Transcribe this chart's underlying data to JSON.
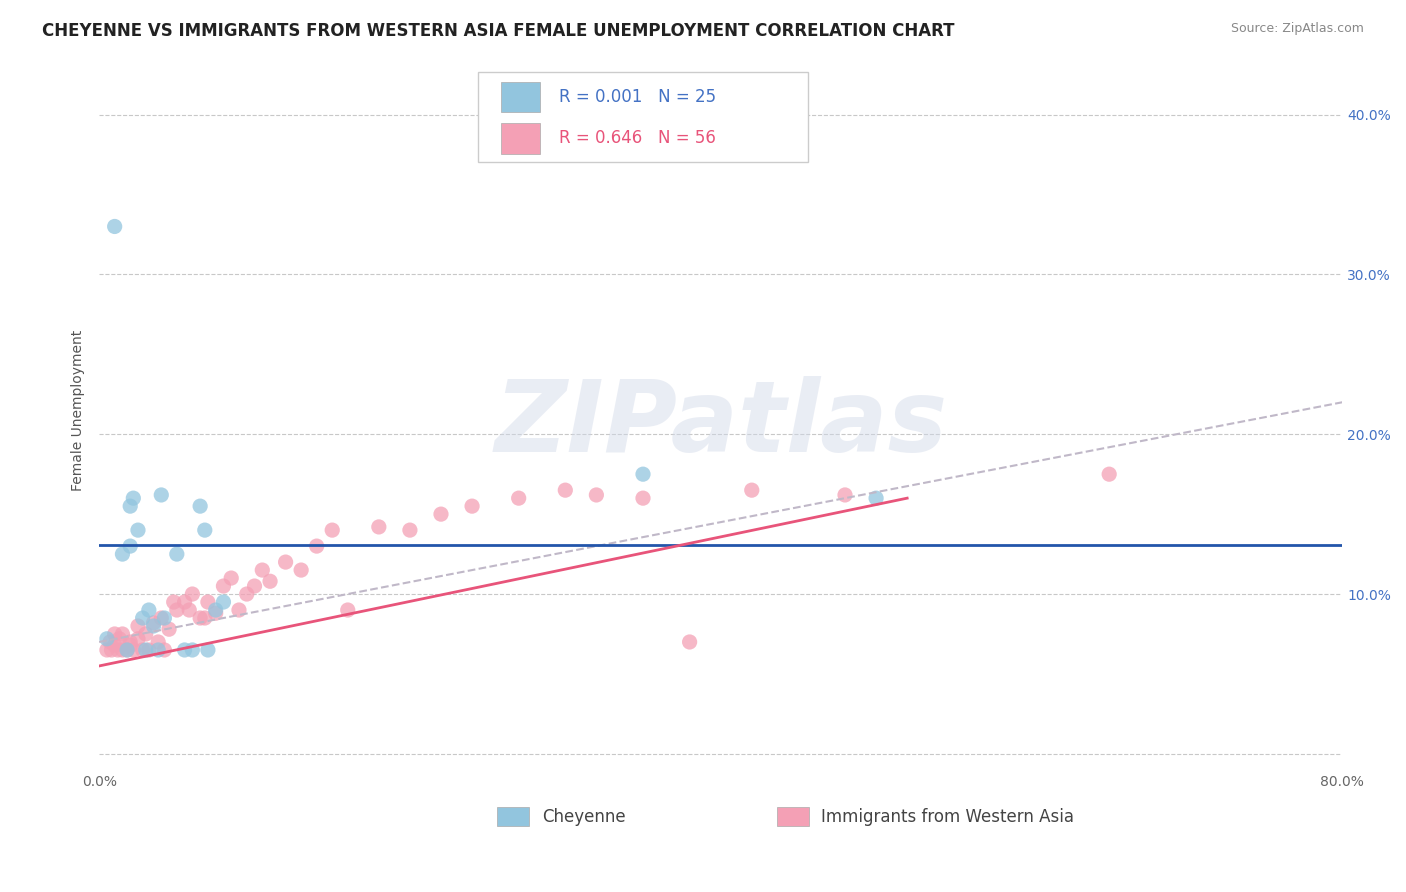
{
  "title": "CHEYENNE VS IMMIGRANTS FROM WESTERN ASIA FEMALE UNEMPLOYMENT CORRELATION CHART",
  "source": "Source: ZipAtlas.com",
  "ylabel": "Female Unemployment",
  "legend_label1": "Cheyenne",
  "legend_label2": "Immigrants from Western Asia",
  "r1": "0.001",
  "n1": "25",
  "r2": "0.646",
  "n2": "56",
  "color1": "#92c5de",
  "color2": "#f4a0b5",
  "trendline1_color": "#2255aa",
  "trendline2_color": "#e8547a",
  "trendline2_dash_color": "#c8aabb",
  "xlim": [
    0.0,
    0.8
  ],
  "ylim": [
    -0.01,
    0.44
  ],
  "yticks": [
    0.0,
    0.1,
    0.2,
    0.3,
    0.4
  ],
  "background_color": "#ffffff",
  "grid_color": "#c8c8c8",
  "cheyenne_x": [
    0.005,
    0.01,
    0.015,
    0.018,
    0.02,
    0.02,
    0.022,
    0.025,
    0.028,
    0.03,
    0.032,
    0.035,
    0.038,
    0.04,
    0.042,
    0.05,
    0.055,
    0.06,
    0.065,
    0.068,
    0.07,
    0.075,
    0.08,
    0.35,
    0.5
  ],
  "cheyenne_y": [
    0.072,
    0.33,
    0.125,
    0.065,
    0.13,
    0.155,
    0.16,
    0.14,
    0.085,
    0.065,
    0.09,
    0.08,
    0.065,
    0.162,
    0.085,
    0.125,
    0.065,
    0.065,
    0.155,
    0.14,
    0.065,
    0.09,
    0.095,
    0.175,
    0.16
  ],
  "western_asia_x": [
    0.005,
    0.007,
    0.008,
    0.01,
    0.01,
    0.012,
    0.013,
    0.015,
    0.015,
    0.018,
    0.02,
    0.02,
    0.022,
    0.025,
    0.025,
    0.028,
    0.03,
    0.032,
    0.035,
    0.038,
    0.04,
    0.042,
    0.045,
    0.048,
    0.05,
    0.055,
    0.058,
    0.06,
    0.065,
    0.068,
    0.07,
    0.075,
    0.08,
    0.085,
    0.09,
    0.095,
    0.1,
    0.105,
    0.11,
    0.12,
    0.13,
    0.14,
    0.15,
    0.16,
    0.18,
    0.2,
    0.22,
    0.24,
    0.27,
    0.3,
    0.32,
    0.35,
    0.38,
    0.42,
    0.48,
    0.65
  ],
  "western_asia_y": [
    0.065,
    0.07,
    0.065,
    0.068,
    0.075,
    0.065,
    0.072,
    0.065,
    0.075,
    0.065,
    0.068,
    0.07,
    0.065,
    0.072,
    0.08,
    0.065,
    0.075,
    0.065,
    0.082,
    0.07,
    0.085,
    0.065,
    0.078,
    0.095,
    0.09,
    0.095,
    0.09,
    0.1,
    0.085,
    0.085,
    0.095,
    0.088,
    0.105,
    0.11,
    0.09,
    0.1,
    0.105,
    0.115,
    0.108,
    0.12,
    0.115,
    0.13,
    0.14,
    0.09,
    0.142,
    0.14,
    0.15,
    0.155,
    0.16,
    0.165,
    0.162,
    0.16,
    0.07,
    0.165,
    0.162,
    0.175
  ],
  "watermark_text": "ZIPatlas",
  "title_fontsize": 12,
  "label_fontsize": 10,
  "tick_fontsize": 10,
  "legend_fontsize": 12,
  "source_fontsize": 9,
  "cheyenne_trend_y_flat": 0.131,
  "wa_trend_start_y": 0.055,
  "wa_trend_end_y": 0.16,
  "wa_dash_trend_start_y": 0.07,
  "wa_dash_trend_end_y": 0.22
}
